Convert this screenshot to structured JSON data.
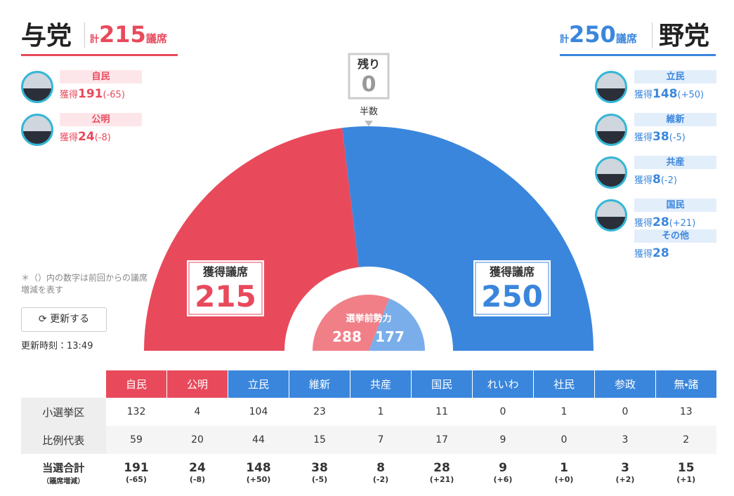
{
  "total_prefix": "計",
  "total_suffix": "議席",
  "won_label": "獲得",
  "ruling": {
    "title": "与党",
    "total": 215,
    "color": "#e84a5c",
    "parties": [
      {
        "name": "自民",
        "won": 191,
        "change": "(-65)"
      },
      {
        "name": "公明",
        "won": 24,
        "change": "(-8)"
      }
    ]
  },
  "opposition": {
    "title": "野党",
    "total": 250,
    "color": "#3a86dc",
    "parties": [
      {
        "name": "立民",
        "won": 148,
        "change": "(+50)"
      },
      {
        "name": "維新",
        "won": 38,
        "change": "(-5)"
      },
      {
        "name": "共産",
        "won": 8,
        "change": "(-2)"
      },
      {
        "name": "国民",
        "won": 28,
        "change": "(+21)"
      }
    ],
    "others": {
      "name": "その他",
      "won": 28
    }
  },
  "remaining": {
    "label": "残り",
    "value": 0
  },
  "majority_label": "半数",
  "seat_label": "獲得議席",
  "pre_election": {
    "label": "選挙前勢力",
    "ruling": 288,
    "opposition": 177
  },
  "note": "＊（）内の数字は前回からの議席増減を表す",
  "refresh_button": "更新する",
  "update_time": "更新時刻：13:49",
  "table": {
    "columns": [
      "自民",
      "公明",
      "立民",
      "維新",
      "共産",
      "国民",
      "れいわ",
      "社民",
      "参政",
      "無・諸"
    ],
    "rows": [
      {
        "label": "小選挙区",
        "values": [
          132,
          4,
          104,
          23,
          1,
          11,
          0,
          1,
          0,
          13
        ]
      },
      {
        "label": "比例代表",
        "values": [
          59,
          20,
          44,
          15,
          7,
          17,
          9,
          0,
          3,
          2
        ]
      },
      {
        "label": "当選合計",
        "sublabel": "（議席増減）",
        "values": [
          191,
          24,
          148,
          38,
          8,
          28,
          9,
          1,
          3,
          15
        ],
        "changes": [
          "(-65)",
          "(-8)",
          "(+50)",
          "(-5)",
          "(-2)",
          "(+21)",
          "(+6)",
          "(+0)",
          "(+2)",
          "(+1)"
        ]
      }
    ]
  }
}
